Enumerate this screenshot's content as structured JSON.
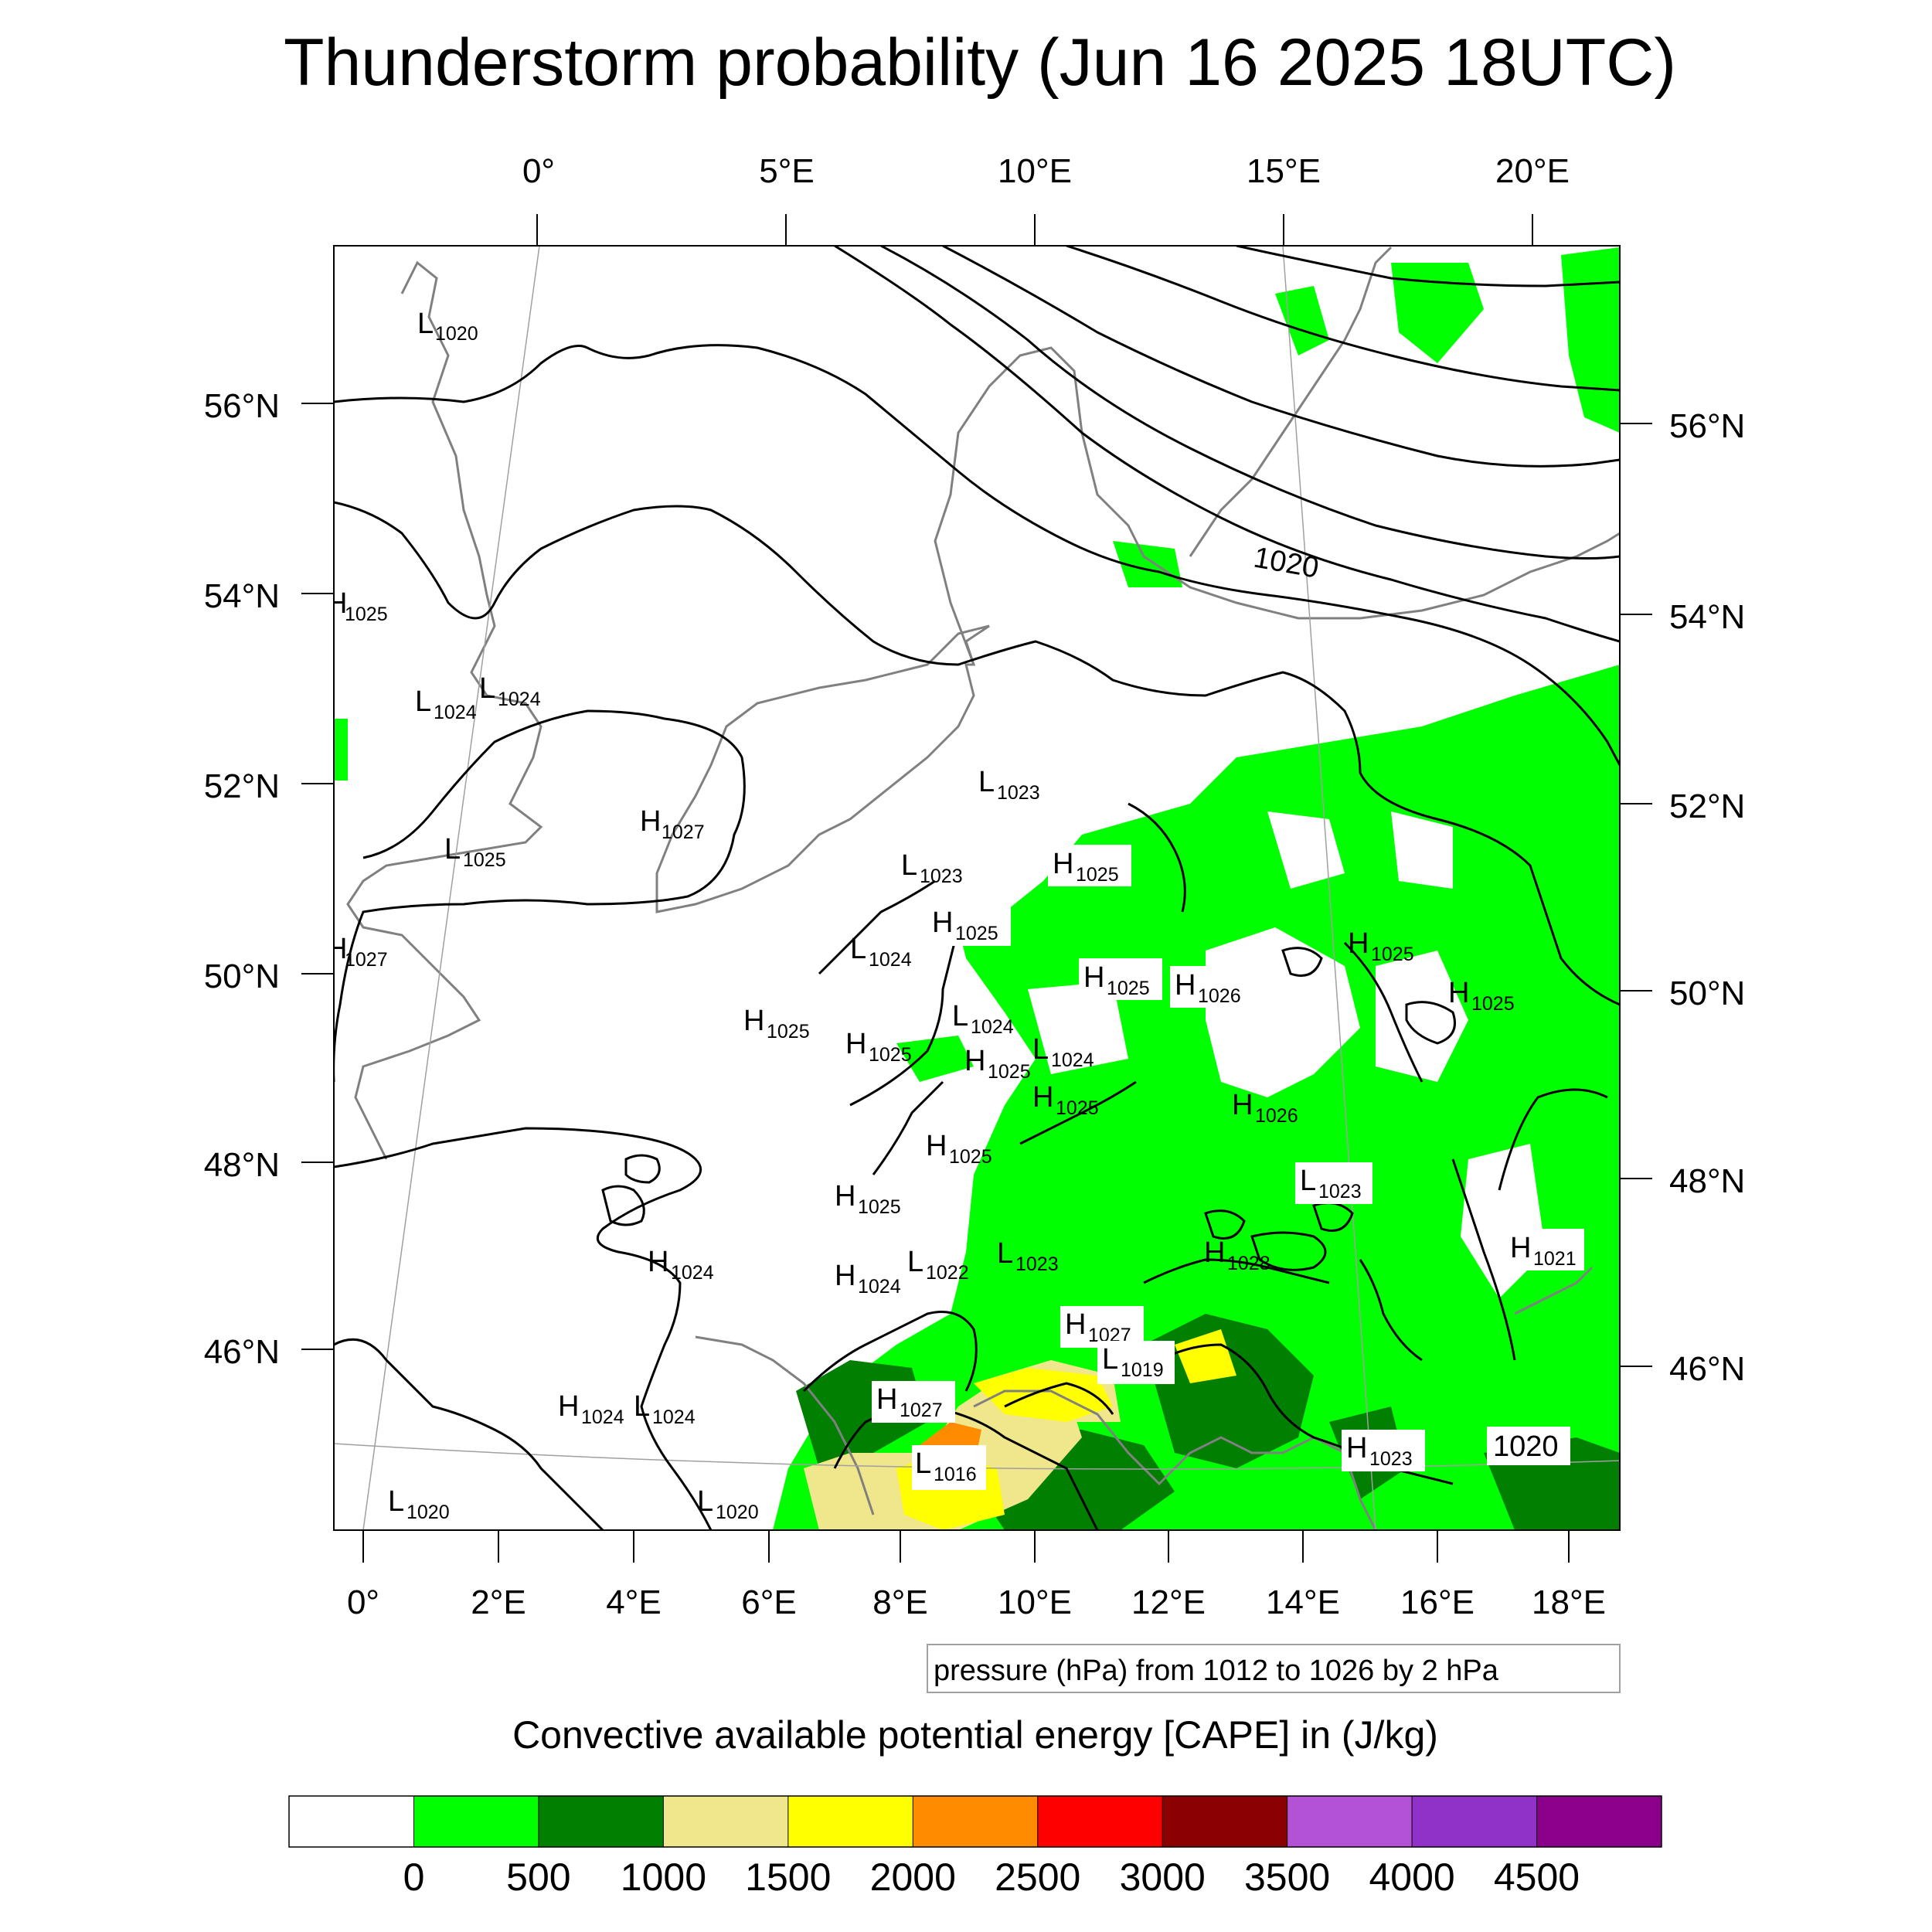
{
  "title": "Thunderstorm probability (Jun 16 2025 18UTC)",
  "axes": {
    "top_lon": [
      "0°",
      "5°E",
      "10°E",
      "15°E",
      "20°E"
    ],
    "bottom_lon": [
      "0°",
      "2°E",
      "4°E",
      "6°E",
      "8°E",
      "10°E",
      "12°E",
      "14°E",
      "16°E",
      "18°E"
    ],
    "left_lat": [
      "56°N",
      "54°N",
      "52°N",
      "50°N",
      "48°N",
      "46°N"
    ],
    "right_lat": [
      "56°N",
      "54°N",
      "52°N",
      "50°N",
      "48°N",
      "46°N"
    ]
  },
  "contour_note": "pressure (hPa) from 1012 to 1026 by 2 hPa",
  "contour_label": "1020",
  "colorbar": {
    "title": "Convective available potential energy [CAPE] in (J/kg)",
    "ticks": [
      "0",
      "500",
      "1000",
      "1500",
      "2000",
      "2500",
      "3000",
      "3500",
      "4000",
      "4500"
    ],
    "colors": [
      "#ffffff",
      "#00ff00",
      "#007f00",
      "#f0e68c",
      "#ffff00",
      "#ff8c00",
      "#ff0000",
      "#8b0000",
      "#b452d6",
      "#9032c8",
      "#8b008b"
    ]
  },
  "pressure_centers": [
    {
      "letter": "L",
      "value": "1020"
    },
    {
      "letter": "H",
      "value": "1025"
    },
    {
      "letter": "L",
      "value": "1024"
    },
    {
      "letter": "L",
      "value": "1024"
    },
    {
      "letter": "L",
      "value": "1025"
    },
    {
      "letter": "H",
      "value": "1027"
    },
    {
      "letter": "H",
      "value": "1027"
    },
    {
      "letter": "L",
      "value": "1023"
    },
    {
      "letter": "L",
      "value": "1023"
    },
    {
      "letter": "H",
      "value": "1025"
    },
    {
      "letter": "H",
      "value": "1025"
    },
    {
      "letter": "L",
      "value": "1024"
    },
    {
      "letter": "H",
      "value": "1025"
    },
    {
      "letter": "H",
      "value": "1026"
    },
    {
      "letter": "H",
      "value": "1025"
    },
    {
      "letter": "H",
      "value": "1025"
    },
    {
      "letter": "H",
      "value": "1025"
    },
    {
      "letter": "H",
      "value": "1025"
    },
    {
      "letter": "L",
      "value": "1024"
    },
    {
      "letter": "L",
      "value": "1024"
    },
    {
      "letter": "H",
      "value": "1025"
    },
    {
      "letter": "H",
      "value": "1025"
    },
    {
      "letter": "H",
      "value": "1026"
    },
    {
      "letter": "H",
      "value": "1025"
    },
    {
      "letter": "L",
      "value": "1023"
    },
    {
      "letter": "H",
      "value": "1025"
    },
    {
      "letter": "H",
      "value": "1024"
    },
    {
      "letter": "H",
      "value": "1024"
    },
    {
      "letter": "L",
      "value": "1022"
    },
    {
      "letter": "L",
      "value": "1023"
    },
    {
      "letter": "H",
      "value": "1028"
    },
    {
      "letter": "H",
      "value": "1021"
    },
    {
      "letter": "H",
      "value": "1027"
    },
    {
      "letter": "L",
      "value": "1019"
    },
    {
      "letter": "H",
      "value": "1027"
    },
    {
      "letter": "H",
      "value": "1024"
    },
    {
      "letter": "L",
      "value": "1024"
    },
    {
      "letter": "L",
      "value": "1016"
    },
    {
      "letter": "H",
      "value": "1023"
    },
    {
      "letter": "L",
      "value": "1020"
    },
    {
      "letter": "L",
      "value": "1020"
    }
  ]
}
